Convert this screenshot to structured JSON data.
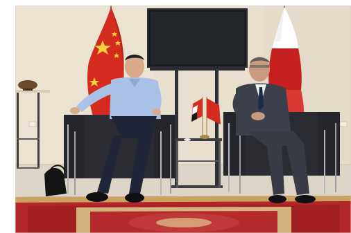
{
  "scene": {
    "description_colors": {
      "wall": "#eae1d2",
      "chair": "#2a2b30",
      "rug_red": "#a52122",
      "rug_border": "#c9a25f",
      "china_red": "#d42a1f",
      "star_yellow": "#f6d43a",
      "egypt_black": "#1c1c1c",
      "suit_dark": "#3f434d",
      "shirt_blue": "#a9c1e6",
      "tv_black": "#1d1f22"
    },
    "objects": [
      "china-flag",
      "egypt-flag",
      "television",
      "left-man",
      "right-man",
      "left-armchair",
      "right-armchair",
      "side-table",
      "desk-flags",
      "rug",
      "shelf-bowl",
      "bag"
    ]
  }
}
